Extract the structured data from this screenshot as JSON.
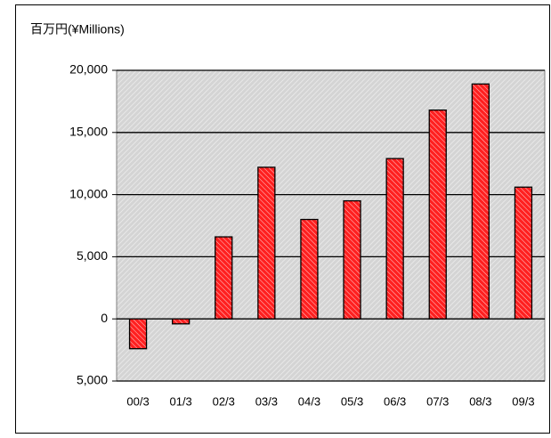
{
  "chart_data": {
    "type": "bar",
    "y_label": "百万円(¥Millions)",
    "categories": [
      "00/3",
      "01/3",
      "02/3",
      "03/3",
      "04/3",
      "05/3",
      "06/3",
      "07/3",
      "08/3",
      "09/3"
    ],
    "values": [
      -2400,
      -400,
      6600,
      12200,
      8000,
      9500,
      12900,
      16800,
      18900,
      10600
    ],
    "color": "#ff2020",
    "ylim": [
      -5000,
      20000
    ],
    "yticks": [
      {
        "value": -5000,
        "label": "5,000"
      },
      0,
      {
        "value": 5000,
        "label": "5,000"
      },
      {
        "value": 10000,
        "label": "10,000"
      },
      {
        "value": 15000,
        "label": "15,000"
      },
      {
        "value": 20000,
        "label": "20,000"
      }
    ],
    "grid": true
  }
}
